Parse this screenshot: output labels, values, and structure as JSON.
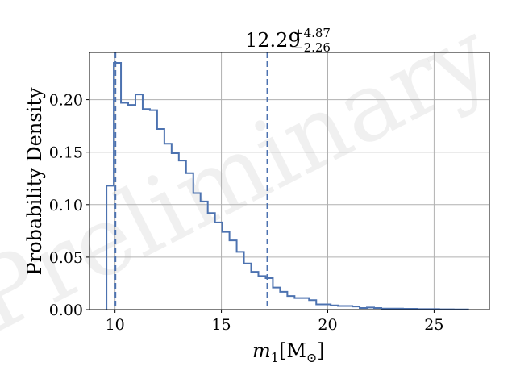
{
  "chart_data": {
    "type": "histogram",
    "title": {
      "median": "12.29",
      "upper": "+4.87",
      "lower": "−2.26"
    },
    "xlabel": {
      "base": "m",
      "sub": "1",
      "unit": "[M",
      "unit_sub": "⊙",
      "close": "]"
    },
    "ylabel": "Probability Density",
    "watermark": "Preliminary",
    "xlim": [
      8.8,
      27.6
    ],
    "ylim": [
      0,
      0.245
    ],
    "xticks": [
      10,
      15,
      20,
      25
    ],
    "yticks": [
      0.0,
      0.05,
      0.1,
      0.15,
      0.2
    ],
    "xtick_labels": [
      "10",
      "15",
      "20",
      "25"
    ],
    "ytick_labels": [
      "0.00",
      "0.05",
      "0.10",
      "0.15",
      "0.20"
    ],
    "grid": true,
    "bin_edges": [
      9.6,
      9.94,
      10.28,
      10.62,
      10.96,
      11.3,
      11.64,
      11.98,
      12.32,
      12.66,
      13.0,
      13.34,
      13.68,
      14.02,
      14.36,
      14.7,
      15.04,
      15.38,
      15.72,
      16.06,
      16.4,
      16.74,
      17.08,
      17.42,
      17.76,
      18.1,
      18.44,
      18.78,
      19.12,
      19.46,
      19.8,
      20.14,
      20.48,
      20.82,
      21.16,
      21.5,
      21.84,
      22.18,
      22.52,
      22.86,
      23.2,
      23.54,
      23.88,
      24.22,
      24.56,
      24.9,
      25.24,
      25.58,
      25.92,
      26.26,
      26.6
    ],
    "density": [
      0.118,
      0.235,
      0.197,
      0.195,
      0.205,
      0.191,
      0.19,
      0.172,
      0.158,
      0.149,
      0.142,
      0.13,
      0.111,
      0.103,
      0.092,
      0.083,
      0.074,
      0.066,
      0.055,
      0.044,
      0.036,
      0.032,
      0.03,
      0.021,
      0.017,
      0.013,
      0.011,
      0.011,
      0.009,
      0.005,
      0.005,
      0.004,
      0.0035,
      0.0035,
      0.003,
      0.0015,
      0.002,
      0.0015,
      0.001,
      0.001,
      0.001,
      0.0008,
      0.0008,
      0.0005,
      0.0005,
      0.0005,
      0.0003,
      0.0003,
      0.0002,
      0.0002
    ],
    "vlines": [
      10.02,
      17.16
    ],
    "colors": {
      "series": "#4c72b0",
      "grid": "#b0b0b0",
      "axes": "#000000"
    }
  }
}
